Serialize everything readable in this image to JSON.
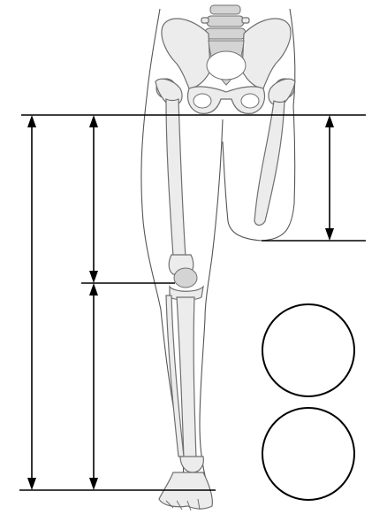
{
  "figure": {
    "subject": "lower-limb-amputation-measurement-diagram",
    "measurement_circle_count": 2
  }
}
